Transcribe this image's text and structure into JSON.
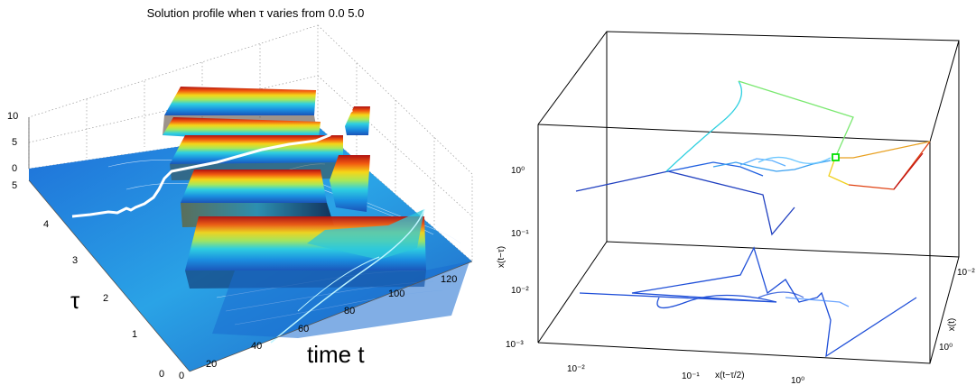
{
  "chart_data": [
    {
      "type": "surface",
      "title": "Solution profile when τ varies from 0.0 5.0",
      "xlabel": "time t",
      "ylabel": "τ",
      "zlabel": "",
      "x_ticks": [
        "0",
        "20",
        "40",
        "60",
        "80",
        "100",
        "120"
      ],
      "y_ticks": [
        "0",
        "1",
        "2",
        "3",
        "4",
        "5"
      ],
      "z_ticks": [
        "0",
        "5",
        "10"
      ],
      "xlim": [
        0,
        120
      ],
      "ylim": [
        0,
        5
      ],
      "zlim": [
        0,
        10
      ],
      "colormap": "jet",
      "grid": true,
      "highlight_curve": {
        "color": "#ffffff",
        "tau": 4.2
      }
    },
    {
      "type": "line3d",
      "title": "",
      "xlabel": "x(t−τ/2)",
      "ylabel": "x(t)",
      "zlabel": "x(t−τ)",
      "scale": "log",
      "x_ticks": [
        "10⁻²",
        "10⁻¹",
        "10⁰"
      ],
      "y_ticks": [
        "10⁰",
        "10⁻²"
      ],
      "z_ticks": [
        "10⁻³",
        "10⁻²",
        "10⁻¹",
        "10⁰"
      ],
      "grid": false,
      "series": [
        {
          "role": "trajectory",
          "color": "#1f4fd8"
        },
        {
          "role": "projection",
          "color": "#1f4fd8"
        }
      ],
      "marker": {
        "shape": "square",
        "color": "#00e000"
      }
    }
  ]
}
